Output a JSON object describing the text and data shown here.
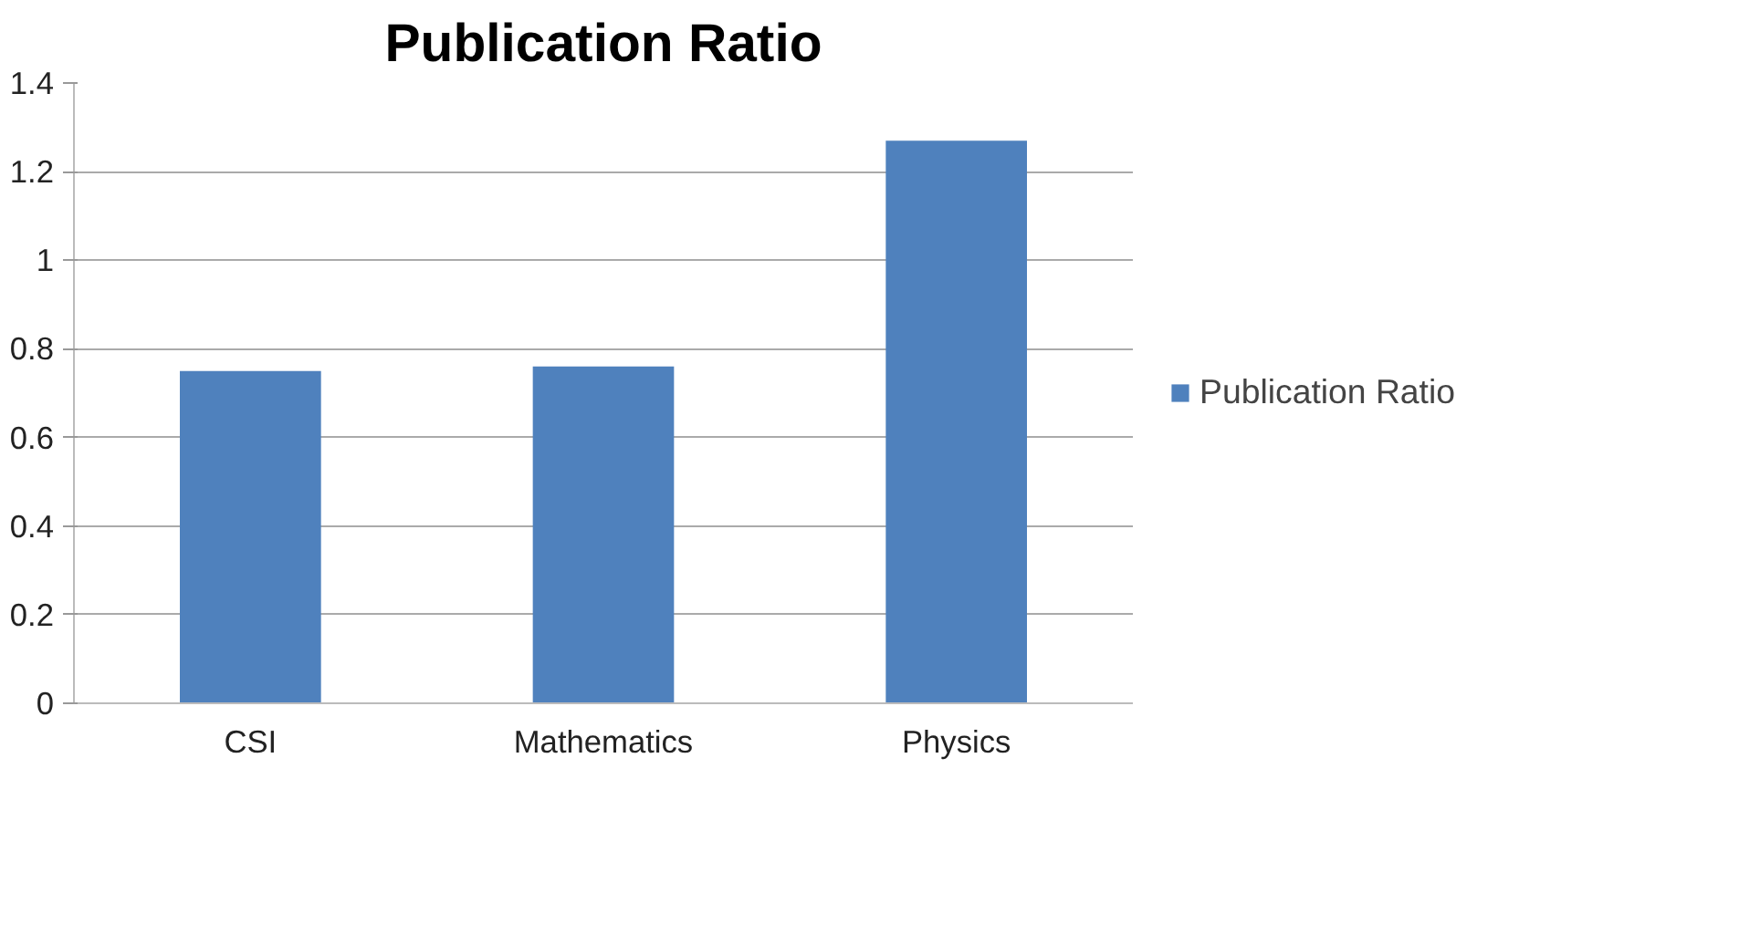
{
  "chart_data": {
    "type": "bar",
    "title": "Publication Ratio",
    "categories": [
      "CSI",
      "Mathematics",
      "Physics"
    ],
    "series": [
      {
        "name": "Publication Ratio",
        "color": "#4f81bd",
        "values": [
          0.75,
          0.76,
          1.27
        ]
      }
    ],
    "ylim": [
      0,
      1.4
    ],
    "yticks": [
      0,
      0.2,
      0.4,
      0.6,
      0.8,
      1,
      1.2,
      1.4
    ],
    "grid": "y",
    "legend": "right"
  }
}
